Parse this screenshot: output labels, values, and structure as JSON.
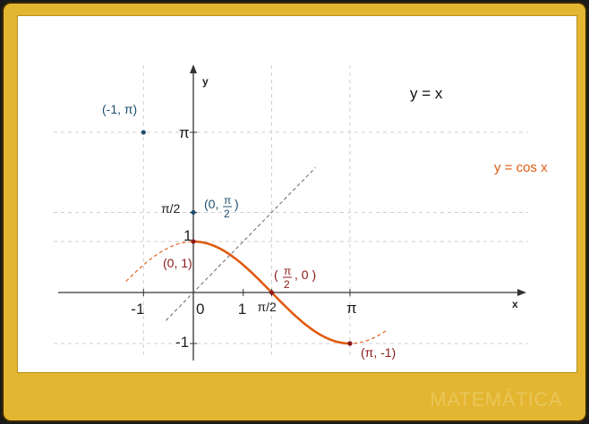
{
  "chart_data": {
    "type": "line",
    "xlabel": "x",
    "ylabel": "y",
    "xlim": [
      -1.6,
      4.0
    ],
    "ylim": [
      -1.15,
      3.6
    ],
    "grid": false,
    "x_ticks": [
      {
        "value": -1,
        "label": "-1"
      },
      {
        "value": 0,
        "label": "0"
      },
      {
        "value": 1,
        "label": "1"
      },
      {
        "value": 1.5708,
        "label": "π/2"
      },
      {
        "value": 3.1416,
        "label": "π"
      }
    ],
    "y_ticks": [
      {
        "value": -1,
        "label": "-1"
      },
      {
        "value": 1,
        "label": "1"
      },
      {
        "value": 1.5708,
        "label": "π/2"
      },
      {
        "value": 3.1416,
        "label": "π"
      }
    ],
    "series": [
      {
        "name": "y = x",
        "function": "x",
        "x_range": [
          -0.55,
          2.45
        ],
        "style": "dashed",
        "color": "#666666"
      },
      {
        "name": "y = cos x",
        "function": "cos(x)",
        "x_range": [
          -1.35,
          3.9
        ],
        "highlight_range": [
          0,
          3.1416
        ],
        "style": "dashed",
        "color": "#e05a10"
      }
    ],
    "points": [
      {
        "x": -1,
        "y": 3.1416,
        "label": "(-1, π)",
        "color": "#1f4e6e"
      },
      {
        "x": 0,
        "y": 1.5708,
        "label_parts": [
          "(0, ",
          "π",
          "2",
          " )"
        ],
        "color": "#1f4e6e"
      },
      {
        "x": 0,
        "y": 1,
        "label": "(0, 1)",
        "color": "#8b1a1a"
      },
      {
        "x": 1.5708,
        "y": 0,
        "label_parts": [
          "( ",
          "π",
          "2",
          ", 0 )"
        ],
        "color": "#8b1a1a"
      },
      {
        "x": 3.1416,
        "y": -1,
        "label": "(π, -1)",
        "color": "#8b1a1a"
      }
    ]
  },
  "watermark": "MATEMÁTICA"
}
